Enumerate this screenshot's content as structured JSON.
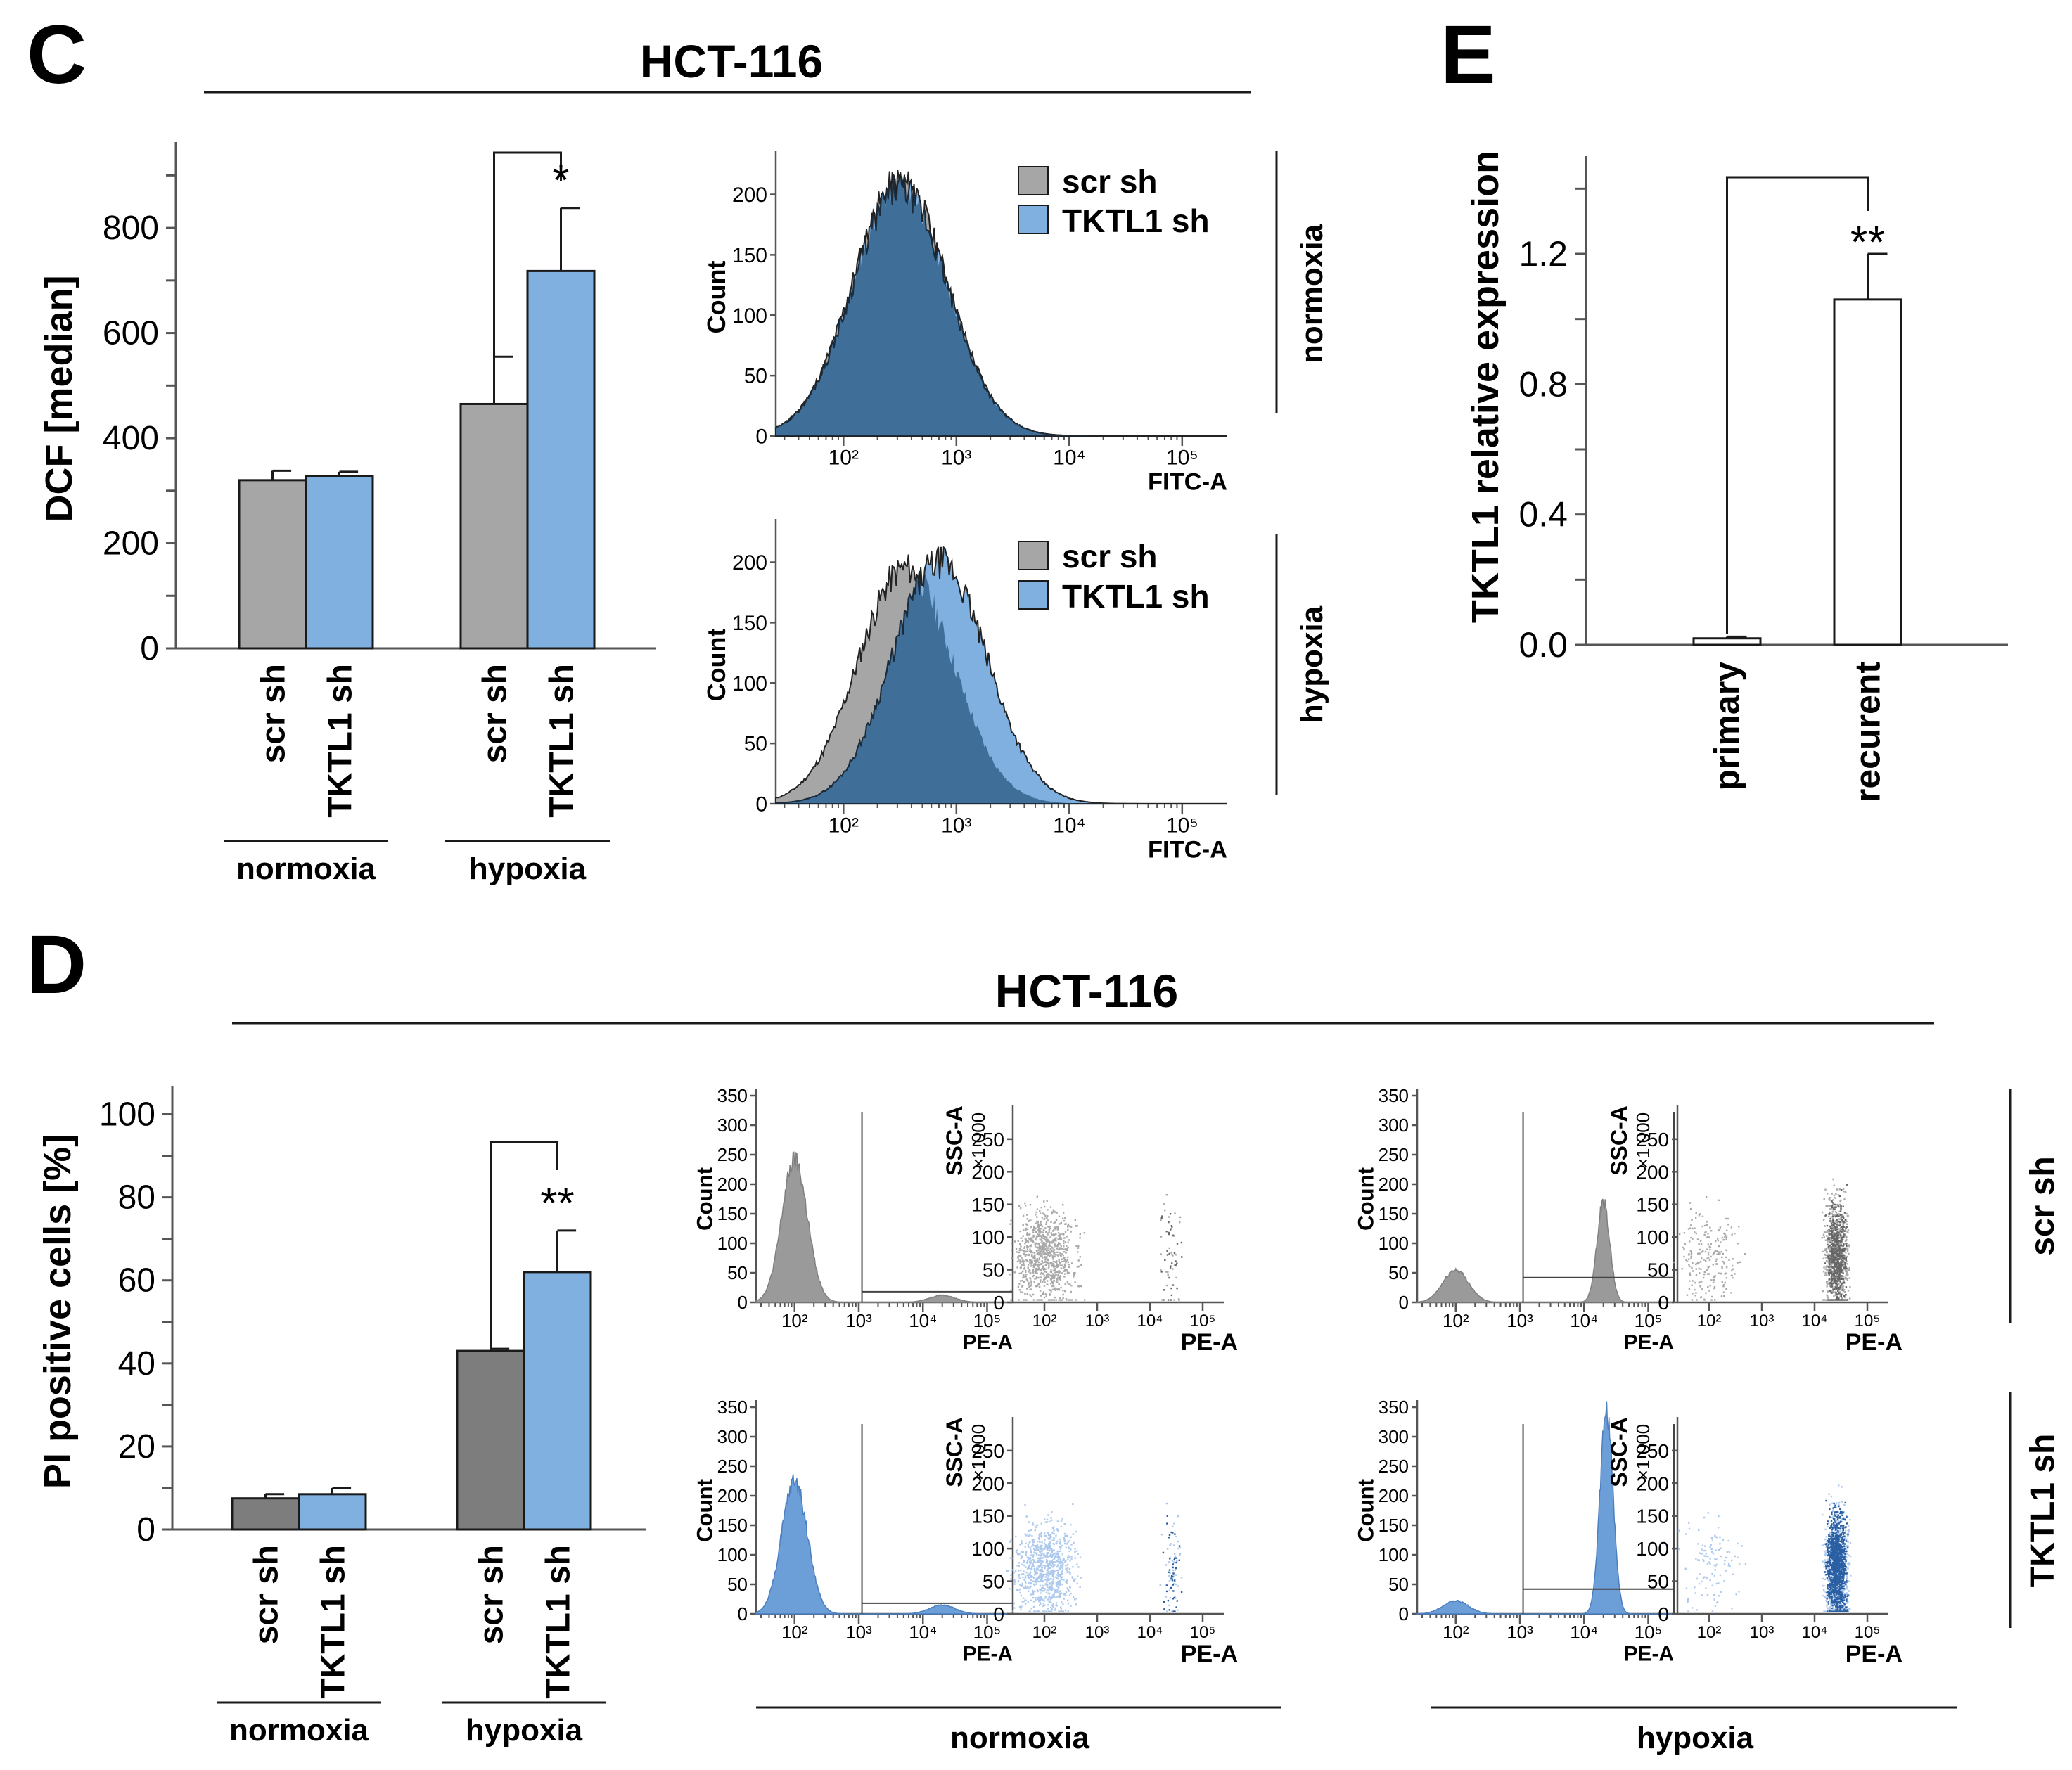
{
  "colors": {
    "scr": "#a6a6a6",
    "scr_dark": "#7d7d7d",
    "tktl": "#7fb0e0",
    "tktl_mid": "#6c9fd8",
    "overlap": "#3f6e99",
    "stroke": "#1a1a1a",
    "axis": "#555555",
    "dot_grey": "#666666",
    "dot_blue": "#2a5fa3"
  },
  "panels": {
    "C": {
      "letter": "C",
      "title": "HCT-116"
    },
    "D": {
      "letter": "D",
      "title": "HCT-116"
    },
    "E": {
      "letter": "E"
    }
  },
  "chart_data": [
    {
      "id": "C-bar",
      "type": "bar",
      "ylabel": "DCF [median]",
      "ylim": [
        0,
        950
      ],
      "yticks": [
        0,
        200,
        400,
        600,
        800
      ],
      "groups": [
        "normoxia",
        "hypoxia"
      ],
      "categories": [
        "scr sh",
        "TKTL1 sh"
      ],
      "series": [
        {
          "name": "scr sh",
          "values": [
            320,
            465
          ],
          "errors": [
            18,
            90
          ]
        },
        {
          "name": "TKTL1 sh",
          "values": [
            328,
            718
          ],
          "errors": [
            8,
            120
          ]
        }
      ],
      "significance": [
        {
          "group": "hypoxia",
          "label": "*"
        }
      ]
    },
    {
      "id": "C-hist-normoxia",
      "type": "area",
      "condition": "normoxia",
      "ylabel": "Count",
      "xlabel": "FITC-A",
      "ylim": [
        0,
        230
      ],
      "yticks": [
        0,
        50,
        100,
        150,
        200
      ],
      "xticks": [
        "10²",
        "10³",
        "10⁴",
        "10⁵"
      ],
      "legend": [
        "scr sh",
        "TKTL1 sh"
      ],
      "series": [
        {
          "name": "scr sh",
          "peak_log10": 2.5,
          "peak_count": 210
        },
        {
          "name": "TKTL1 sh",
          "peak_log10": 2.5,
          "peak_count": 205
        }
      ]
    },
    {
      "id": "C-hist-hypoxia",
      "type": "area",
      "condition": "hypoxia",
      "ylabel": "Count",
      "xlabel": "FITC-A",
      "ylim": [
        0,
        230
      ],
      "yticks": [
        0,
        50,
        100,
        150,
        200
      ],
      "xticks": [
        "10²",
        "10³",
        "10⁴",
        "10⁵"
      ],
      "legend": [
        "scr sh",
        "TKTL1 sh"
      ],
      "series": [
        {
          "name": "scr sh",
          "peak_log10": 2.55,
          "peak_count": 195
        },
        {
          "name": "TKTL1 sh",
          "peak_log10": 2.85,
          "peak_count": 200
        }
      ]
    },
    {
      "id": "D-bar",
      "type": "bar",
      "ylabel": "PI positive cells [%]",
      "ylim": [
        0,
        105
      ],
      "yticks": [
        0,
        20,
        40,
        60,
        80,
        100
      ],
      "groups": [
        "normoxia",
        "hypoxia"
      ],
      "categories": [
        "scr sh",
        "TKTL1 sh"
      ],
      "series": [
        {
          "name": "scr sh",
          "values": [
            7.5,
            43
          ],
          "errors": [
            1,
            0.5
          ]
        },
        {
          "name": "TKTL1 sh",
          "values": [
            8.5,
            62
          ],
          "errors": [
            1.5,
            10
          ]
        }
      ],
      "significance": [
        {
          "group": "hypoxia",
          "label": "**"
        }
      ]
    },
    {
      "id": "D-flow",
      "type": "scatter",
      "rows": [
        "scr sh",
        "TKTL1 sh"
      ],
      "conditions": [
        "normoxia",
        "hypoxia"
      ],
      "hist_ylabel": "Count",
      "hist_xlabel": "PE-A",
      "hist_yticks": [
        0,
        50,
        100,
        150,
        200,
        250,
        300,
        350
      ],
      "scatter_ylabel": "SSC-A",
      "scatter_yunit": "×1 000",
      "scatter_yticks": [
        0,
        50,
        100,
        150,
        200,
        250
      ],
      "scatter_xlabel": "PE-A",
      "xticks": [
        "10²",
        "10³",
        "10⁴",
        "10⁵"
      ],
      "histograms": [
        {
          "row": "scr sh",
          "condition": "normoxia",
          "peaks": [
            {
              "log10": 2.0,
              "count": 240
            },
            {
              "log10": 4.3,
              "count": 12
            }
          ]
        },
        {
          "row": "scr sh",
          "condition": "hypoxia",
          "peaks": [
            {
              "log10": 2.0,
              "count": 55
            },
            {
              "log10": 4.3,
              "count": 170
            }
          ]
        },
        {
          "row": "TKTL1 sh",
          "condition": "normoxia",
          "peaks": [
            {
              "log10": 2.0,
              "count": 225
            },
            {
              "log10": 4.3,
              "count": 15
            }
          ]
        },
        {
          "row": "TKTL1 sh",
          "condition": "hypoxia",
          "peaks": [
            {
              "log10": 2.0,
              "count": 22
            },
            {
              "log10": 4.35,
              "count": 345
            }
          ]
        }
      ]
    },
    {
      "id": "E-bar",
      "type": "bar",
      "ylabel": "TKTL1 relative expression",
      "ylim": [
        0,
        1.5
      ],
      "yticks": [
        "0.0",
        "0.4",
        "0.8",
        "1.2"
      ],
      "categories": [
        "primary",
        "recurent"
      ],
      "values": [
        0.02,
        1.06
      ],
      "errors": [
        0.005,
        0.14
      ],
      "significance": [
        {
          "label": "**"
        }
      ]
    }
  ]
}
